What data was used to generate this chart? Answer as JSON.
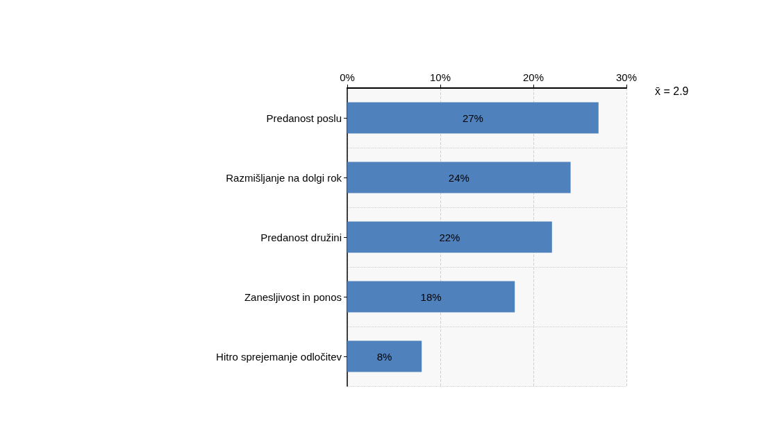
{
  "chart_data": {
    "type": "bar",
    "orientation": "horizontal",
    "categories": [
      "Predanost poslu",
      "Razmišljanje na dolgi rok",
      "Predanost družini",
      "Zanesljivost in ponos",
      "Hitro sprejemanje odločitev"
    ],
    "values": [
      27,
      24,
      22,
      18,
      8
    ],
    "value_labels": [
      "27%",
      "24%",
      "22%",
      "18%",
      "8%"
    ],
    "color": "#4f81bd",
    "xlim": [
      0,
      30
    ],
    "xticks": [
      {
        "value": 0,
        "label": "0%"
      },
      {
        "value": 10,
        "label": "10%"
      },
      {
        "value": 20,
        "label": "20%"
      },
      {
        "value": 30,
        "label": "30%"
      }
    ],
    "grid": true,
    "annotations": [
      "x̄ = 2.9"
    ]
  }
}
